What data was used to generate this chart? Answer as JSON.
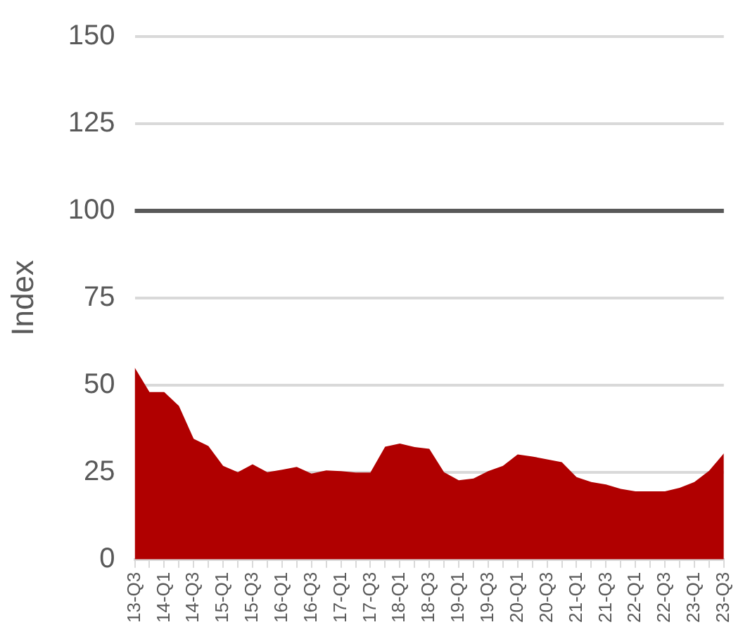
{
  "chart_data": {
    "type": "area",
    "ylabel": "Index",
    "categories": [
      "13-Q3",
      null,
      "14-Q1",
      null,
      "14-Q3",
      null,
      "15-Q1",
      null,
      "15-Q3",
      null,
      "16-Q1",
      null,
      "16-Q3",
      null,
      "17-Q1",
      null,
      "17-Q3",
      null,
      "18-Q1",
      null,
      "18-Q3",
      null,
      "19-Q1",
      null,
      "19-Q3",
      null,
      "20-Q1",
      null,
      "20-Q3",
      null,
      "21-Q1",
      null,
      "21-Q3",
      null,
      "22-Q1",
      null,
      "22-Q3",
      null,
      "23-Q1",
      null,
      "23-Q3"
    ],
    "series": [
      {
        "color": "#b00000",
        "values": [
          55,
          48,
          48,
          44,
          34.6,
          32.5,
          26.8,
          25,
          27.3,
          25,
          25.7,
          26.5,
          24.6,
          25.5,
          25.3,
          24.9,
          24.9,
          32.3,
          33.2,
          32.2,
          31.7,
          25,
          22.7,
          23.2,
          25.3,
          26.8,
          30.1,
          29.5,
          28.7,
          27.9,
          23.6,
          22.2,
          21.5,
          20.2,
          19.5,
          19.5,
          19.5,
          20.5,
          22.2,
          25.4,
          30.4
        ]
      }
    ],
    "ylim": [
      0,
      150
    ],
    "yticks": [
      0,
      25,
      50,
      75,
      100,
      125,
      150
    ],
    "grid": "y",
    "legend": false,
    "ref_lines": [
      {
        "axis": "y",
        "value": 100,
        "color": "#595959"
      }
    ]
  }
}
